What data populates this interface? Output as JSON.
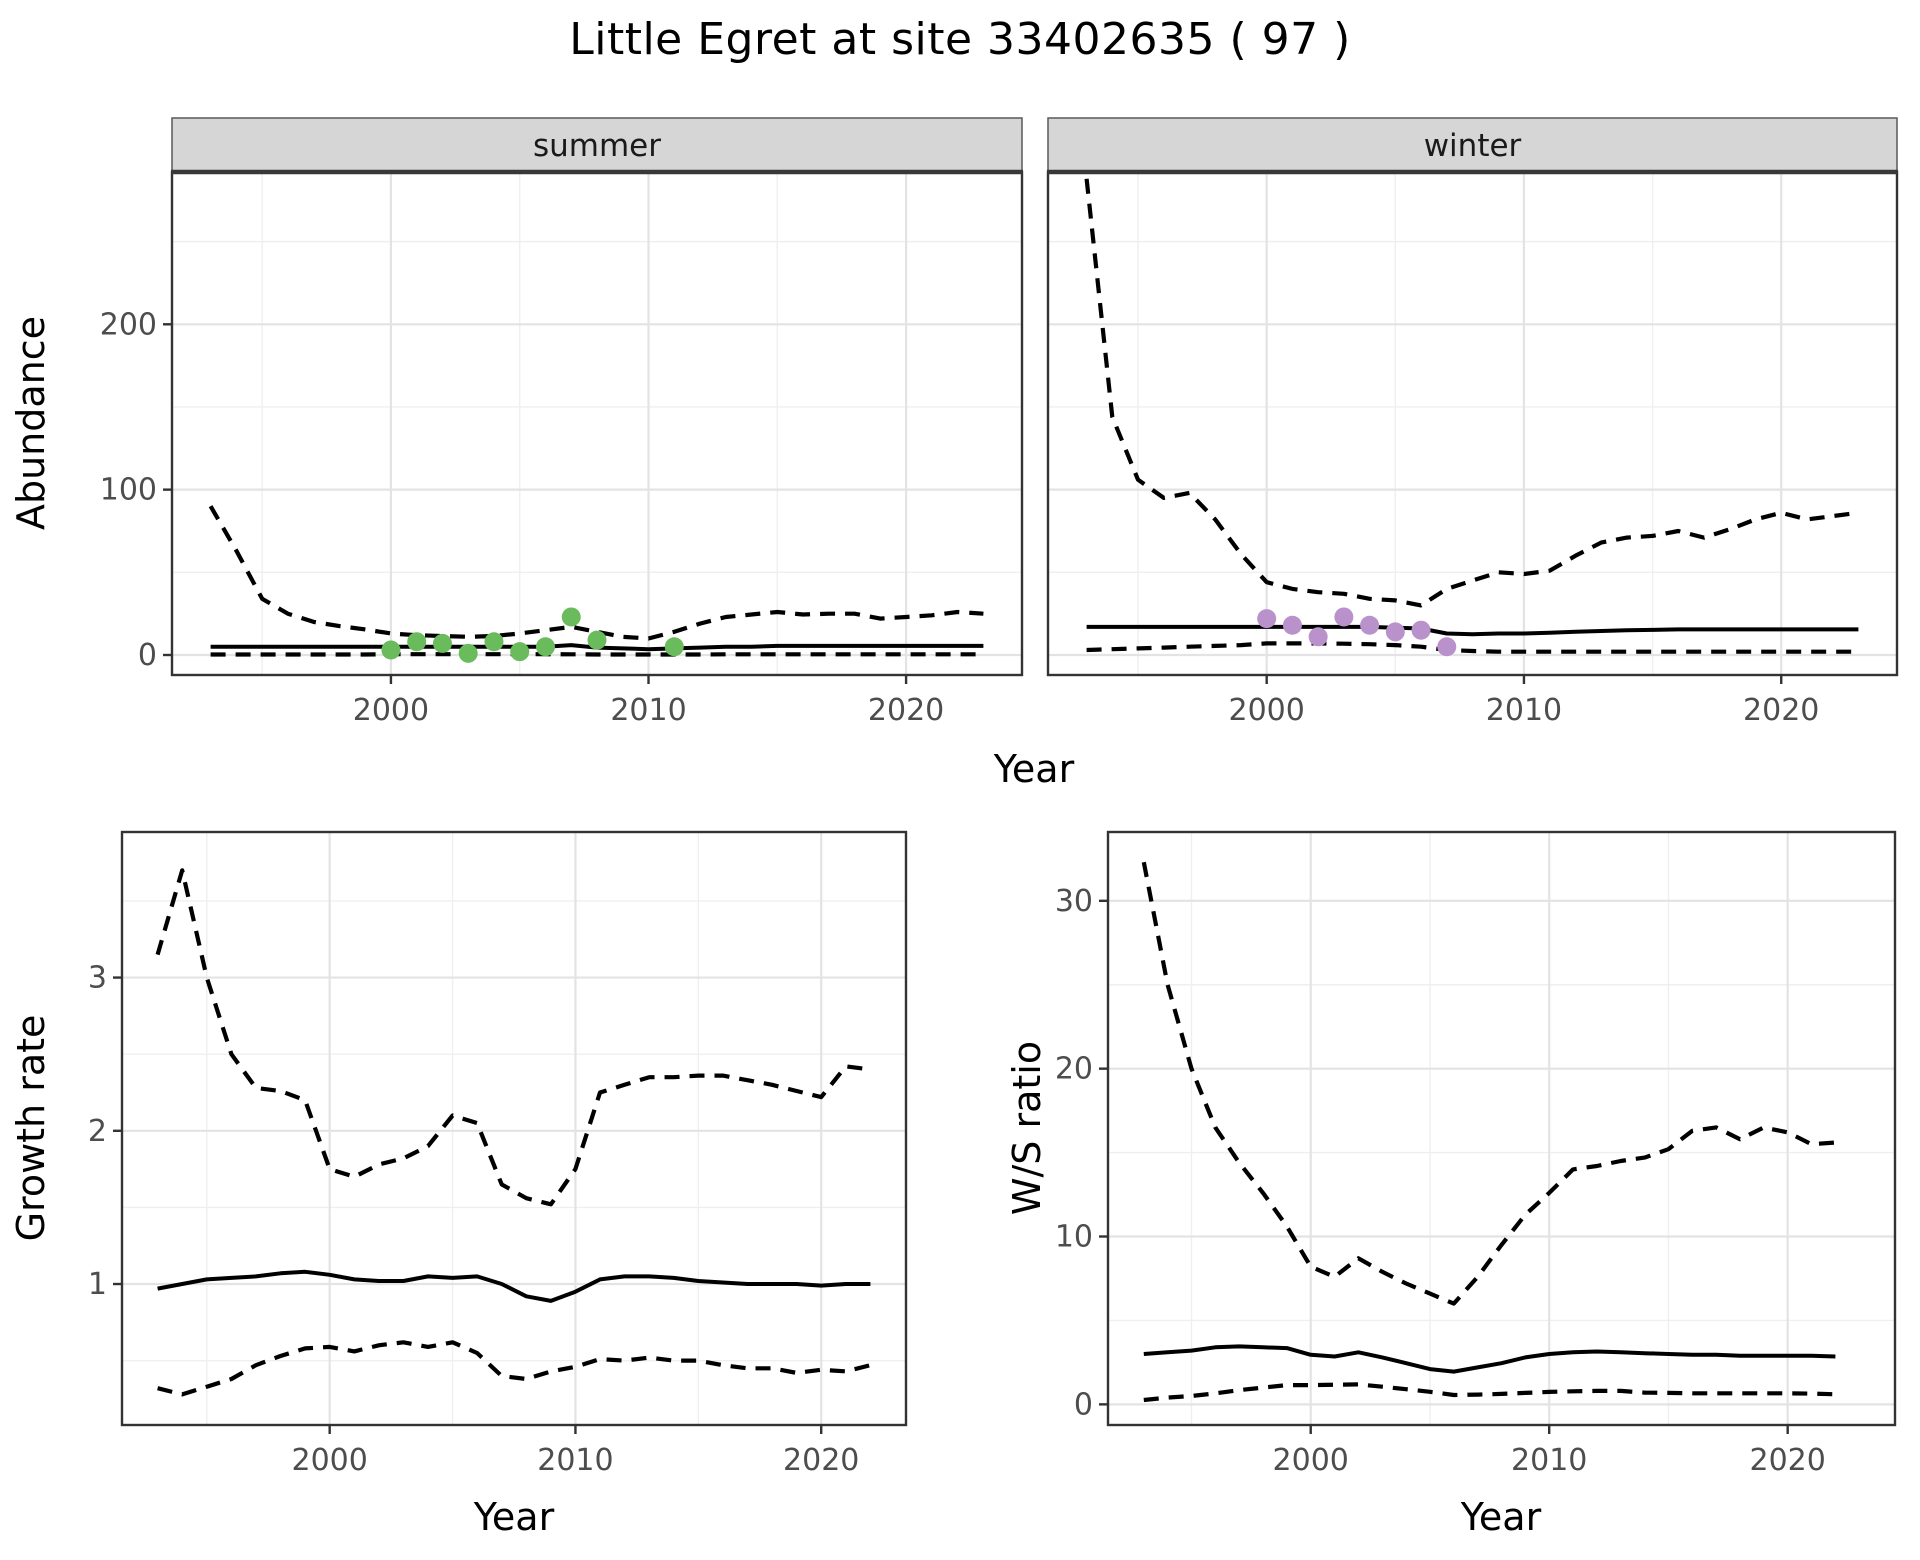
{
  "title": "Little Egret at site 33402635 ( 97 )",
  "colors": {
    "summer_points": "#6abb5c",
    "winter_points": "#b992cc",
    "line": "#000000",
    "grid_major": "#e3e3e3",
    "grid_minor": "#efefef",
    "panel_border": "#333333",
    "strip_bg": "#d6d6d6",
    "strip_edge": "#595959",
    "strip_heavy_border": "#383838",
    "tick_label": "#4d4d4d",
    "axis_title": "#000000"
  },
  "axes": {
    "top_y_label": "Abundance",
    "top_x_label": "Year",
    "bottom_left_y_label": "Growth rate",
    "bottom_left_x_label": "Year",
    "bottom_right_y_label": "W/S ratio",
    "bottom_right_x_label": "Year"
  },
  "chart_data": [
    {
      "id": "abundance-summer",
      "type": "line",
      "facet": "summer",
      "ylabel": "Abundance",
      "xlabel": "Year",
      "xlim": [
        1991.5,
        2024.5
      ],
      "ylim": [
        -12.1,
        292.1
      ],
      "xticks": [
        2000,
        2010,
        2020
      ],
      "yticks": [
        0,
        100,
        200
      ],
      "xminor": [
        1995,
        2005,
        2015
      ],
      "yminor": [
        50,
        150,
        250
      ],
      "series": [
        {
          "name": "upper_ci",
          "style": "dashed",
          "years": [
            1993,
            1994,
            1995,
            1996,
            1997,
            1998,
            1999,
            2000,
            2001,
            2002,
            2003,
            2004,
            2005,
            2006,
            2007,
            2008,
            2009,
            2010,
            2011,
            2012,
            2013,
            2014,
            2015,
            2016,
            2017,
            2018,
            2019,
            2020,
            2021,
            2022,
            2023
          ],
          "values": [
            90,
            63,
            34,
            25,
            20,
            17.5,
            15.5,
            13,
            12,
            11.5,
            11,
            11.5,
            13,
            15,
            17,
            14,
            11,
            10,
            14,
            19,
            23,
            24.5,
            26,
            24.5,
            25,
            25,
            22,
            23,
            24,
            26,
            25
          ]
        },
        {
          "name": "median",
          "style": "solid",
          "years": [
            1993,
            1994,
            1995,
            1996,
            1997,
            1998,
            1999,
            2000,
            2001,
            2002,
            2003,
            2004,
            2005,
            2006,
            2007,
            2008,
            2009,
            2010,
            2011,
            2012,
            2013,
            2014,
            2015,
            2016,
            2017,
            2018,
            2019,
            2020,
            2021,
            2022,
            2023
          ],
          "values": [
            5,
            5,
            5,
            5,
            5,
            5,
            5,
            5,
            5,
            5,
            5,
            5,
            5,
            5,
            6,
            4.5,
            4,
            3.5,
            4,
            4.5,
            5,
            5,
            5.5,
            5.5,
            5.5,
            5.5,
            5.5,
            5.5,
            5.5,
            5.5,
            5.5
          ]
        },
        {
          "name": "lower_ci",
          "style": "dashed",
          "years": [
            1993,
            1994,
            1995,
            1996,
            1997,
            1998,
            1999,
            2000,
            2001,
            2002,
            2003,
            2004,
            2005,
            2006,
            2007,
            2008,
            2009,
            2010,
            2011,
            2012,
            2013,
            2014,
            2015,
            2016,
            2017,
            2018,
            2019,
            2020,
            2021,
            2022,
            2023
          ],
          "values": [
            0.3,
            0.3,
            0.3,
            0.3,
            0.3,
            0.3,
            0.3,
            0.5,
            0.5,
            0.5,
            0.5,
            0.5,
            0.5,
            0.5,
            0.4,
            0.3,
            0.3,
            0.3,
            0.3,
            0.3,
            0.4,
            0.4,
            0.4,
            0.4,
            0.4,
            0.4,
            0.4,
            0.4,
            0.4,
            0.4,
            0.4
          ]
        },
        {
          "name": "observations",
          "style": "points",
          "color_key": "summer_points",
          "years": [
            2000,
            2001,
            2002,
            2003,
            2004,
            2005,
            2006,
            2007,
            2008,
            2011
          ],
          "values": [
            3,
            8,
            7,
            1,
            8,
            2,
            5,
            23,
            9,
            5
          ]
        }
      ]
    },
    {
      "id": "abundance-winter",
      "type": "line",
      "facet": "winter",
      "ylabel": "Abundance",
      "xlabel": "Year",
      "xlim": [
        1991.5,
        2024.5
      ],
      "ylim": [
        -12.1,
        292.1
      ],
      "xticks": [
        2000,
        2010,
        2020
      ],
      "yticks": [
        0,
        100,
        200
      ],
      "xminor": [
        1995,
        2005,
        2015
      ],
      "yminor": [
        50,
        150,
        250
      ],
      "series": [
        {
          "name": "upper_ci",
          "style": "dashed",
          "years": [
            1993,
            1994,
            1995,
            1996,
            1997,
            1998,
            1999,
            2000,
            2001,
            2002,
            2003,
            2004,
            2005,
            2006,
            2007,
            2008,
            2009,
            2010,
            2011,
            2012,
            2013,
            2014,
            2015,
            2016,
            2017,
            2018,
            2019,
            2020,
            2021,
            2022,
            2023
          ],
          "values": [
            288,
            144,
            106,
            95,
            98,
            82,
            61,
            44,
            40,
            38,
            37,
            34,
            33,
            30,
            40,
            45,
            50,
            49,
            51,
            60,
            68,
            71,
            72,
            75,
            71,
            76,
            82,
            86,
            82,
            84,
            86
          ]
        },
        {
          "name": "median",
          "style": "solid",
          "years": [
            1993,
            1994,
            1995,
            1996,
            1997,
            1998,
            1999,
            2000,
            2001,
            2002,
            2003,
            2004,
            2005,
            2006,
            2007,
            2008,
            2009,
            2010,
            2011,
            2012,
            2013,
            2014,
            2015,
            2016,
            2017,
            2018,
            2019,
            2020,
            2021,
            2022,
            2023
          ],
          "values": [
            17,
            17,
            17,
            17,
            17,
            17,
            17,
            17,
            17,
            17,
            17,
            17,
            16.5,
            16,
            13,
            12.5,
            13,
            13,
            13.5,
            14,
            14.5,
            15,
            15.2,
            15.5,
            15.5,
            15.5,
            15.5,
            15.5,
            15.5,
            15.5,
            15.5
          ]
        },
        {
          "name": "lower_ci",
          "style": "dashed",
          "years": [
            1993,
            1994,
            1995,
            1996,
            1997,
            1998,
            1999,
            2000,
            2001,
            2002,
            2003,
            2004,
            2005,
            2006,
            2007,
            2008,
            2009,
            2010,
            2011,
            2012,
            2013,
            2014,
            2015,
            2016,
            2017,
            2018,
            2019,
            2020,
            2021,
            2022,
            2023
          ],
          "values": [
            3,
            3.5,
            4,
            4.5,
            5,
            5.5,
            6,
            7,
            7,
            7,
            6.8,
            6.5,
            6,
            5,
            3,
            2.4,
            2,
            2,
            2,
            2,
            2,
            2,
            2,
            2,
            2,
            2,
            2,
            2,
            2,
            2,
            2
          ]
        },
        {
          "name": "observations",
          "style": "points",
          "color_key": "winter_points",
          "years": [
            2000,
            2001,
            2002,
            2003,
            2004,
            2005,
            2006,
            2007
          ],
          "values": [
            22,
            18,
            11,
            23,
            18,
            14,
            15,
            5
          ]
        }
      ]
    },
    {
      "id": "growth-rate",
      "type": "line",
      "facet": null,
      "ylabel": "Growth rate",
      "xlabel": "Year",
      "xlim": [
        1991.55,
        2023.45
      ],
      "ylim": [
        0.08,
        3.95
      ],
      "xticks": [
        2000,
        2010,
        2020
      ],
      "yticks": [
        1,
        2,
        3
      ],
      "xminor": [
        1995,
        2005,
        2015
      ],
      "yminor": [
        0.5,
        1.5,
        2.5,
        3.5
      ],
      "series": [
        {
          "name": "upper_ci",
          "style": "dashed",
          "years": [
            1993,
            1994,
            1995,
            1996,
            1997,
            1998,
            1999,
            2000,
            2001,
            2002,
            2003,
            2004,
            2005,
            2006,
            2007,
            2008,
            2009,
            2010,
            2011,
            2012,
            2013,
            2014,
            2015,
            2016,
            2017,
            2018,
            2019,
            2020,
            2021,
            2022
          ],
          "values": [
            3.15,
            3.7,
            3.0,
            2.5,
            2.28,
            2.26,
            2.2,
            1.75,
            1.7,
            1.78,
            1.82,
            1.9,
            2.1,
            2.05,
            1.65,
            1.56,
            1.52,
            1.75,
            2.25,
            2.3,
            2.35,
            2.35,
            2.36,
            2.36,
            2.33,
            2.3,
            2.26,
            2.22,
            2.42,
            2.4
          ]
        },
        {
          "name": "median",
          "style": "solid",
          "years": [
            1993,
            1994,
            1995,
            1996,
            1997,
            1998,
            1999,
            2000,
            2001,
            2002,
            2003,
            2004,
            2005,
            2006,
            2007,
            2008,
            2009,
            2010,
            2011,
            2012,
            2013,
            2014,
            2015,
            2016,
            2017,
            2018,
            2019,
            2020,
            2021,
            2022
          ],
          "values": [
            0.97,
            1.0,
            1.03,
            1.04,
            1.05,
            1.07,
            1.08,
            1.06,
            1.03,
            1.02,
            1.02,
            1.05,
            1.04,
            1.05,
            1.0,
            0.92,
            0.89,
            0.95,
            1.03,
            1.05,
            1.05,
            1.04,
            1.02,
            1.01,
            1.0,
            1.0,
            1.0,
            0.99,
            1.0,
            1.0
          ]
        },
        {
          "name": "lower_ci",
          "style": "dashed",
          "years": [
            1993,
            1994,
            1995,
            1996,
            1997,
            1998,
            1999,
            2000,
            2001,
            2002,
            2003,
            2004,
            2005,
            2006,
            2007,
            2008,
            2009,
            2010,
            2011,
            2012,
            2013,
            2014,
            2015,
            2016,
            2017,
            2018,
            2019,
            2020,
            2021,
            2022
          ],
          "values": [
            0.32,
            0.28,
            0.33,
            0.38,
            0.47,
            0.53,
            0.58,
            0.59,
            0.56,
            0.6,
            0.62,
            0.59,
            0.62,
            0.55,
            0.4,
            0.38,
            0.43,
            0.46,
            0.51,
            0.5,
            0.52,
            0.5,
            0.5,
            0.47,
            0.45,
            0.45,
            0.42,
            0.44,
            0.43,
            0.47
          ]
        }
      ]
    },
    {
      "id": "ws-ratio",
      "type": "line",
      "facet": null,
      "ylabel": "W/S ratio",
      "xlabel": "Year",
      "xlim": [
        1991.5,
        2024.5
      ],
      "ylim": [
        -1.23,
        34.1
      ],
      "xticks": [
        2000,
        2010,
        2020
      ],
      "yticks": [
        0,
        10,
        20,
        30
      ],
      "xminor": [
        1995,
        2005,
        2015
      ],
      "yminor": [
        5,
        15,
        25
      ],
      "series": [
        {
          "name": "upper_ci",
          "style": "dashed",
          "years": [
            1993,
            1994,
            1995,
            1996,
            1997,
            1998,
            1999,
            2000,
            2001,
            2002,
            2003,
            2004,
            2005,
            2006,
            2007,
            2008,
            2009,
            2010,
            2011,
            2012,
            2013,
            2014,
            2015,
            2016,
            2017,
            2018,
            2019,
            2020,
            2021,
            2022
          ],
          "values": [
            32.3,
            25,
            20,
            16.5,
            14.4,
            12.6,
            10.6,
            8.2,
            7.6,
            8.7,
            7.9,
            7.2,
            6.6,
            6.0,
            7.6,
            9.5,
            11.3,
            12.6,
            14.0,
            14.2,
            14.5,
            14.7,
            15.2,
            16.3,
            16.5,
            15.8,
            16.5,
            16.2,
            15.5,
            15.6
          ]
        },
        {
          "name": "median",
          "style": "solid",
          "years": [
            1993,
            1994,
            1995,
            1996,
            1997,
            1998,
            1999,
            2000,
            2001,
            2002,
            2003,
            2004,
            2005,
            2006,
            2007,
            2008,
            2009,
            2010,
            2011,
            2012,
            2013,
            2014,
            2015,
            2016,
            2017,
            2018,
            2019,
            2020,
            2021,
            2022
          ],
          "values": [
            3.0,
            3.1,
            3.2,
            3.4,
            3.45,
            3.4,
            3.35,
            2.95,
            2.85,
            3.1,
            2.8,
            2.45,
            2.1,
            1.95,
            2.2,
            2.45,
            2.8,
            3.0,
            3.1,
            3.15,
            3.1,
            3.05,
            3.0,
            2.95,
            2.95,
            2.9,
            2.9,
            2.9,
            2.9,
            2.85
          ]
        },
        {
          "name": "lower_ci",
          "style": "dashed",
          "years": [
            1993,
            1994,
            1995,
            1996,
            1997,
            1998,
            1999,
            2000,
            2001,
            2002,
            2003,
            2004,
            2005,
            2006,
            2007,
            2008,
            2009,
            2010,
            2011,
            2012,
            2013,
            2014,
            2015,
            2016,
            2017,
            2018,
            2019,
            2020,
            2021,
            2022
          ],
          "values": [
            0.26,
            0.4,
            0.5,
            0.65,
            0.85,
            1.0,
            1.15,
            1.15,
            1.17,
            1.19,
            1.05,
            0.9,
            0.75,
            0.56,
            0.58,
            0.62,
            0.68,
            0.74,
            0.78,
            0.8,
            0.8,
            0.7,
            0.68,
            0.66,
            0.66,
            0.66,
            0.66,
            0.66,
            0.64,
            0.6
          ]
        }
      ]
    }
  ]
}
